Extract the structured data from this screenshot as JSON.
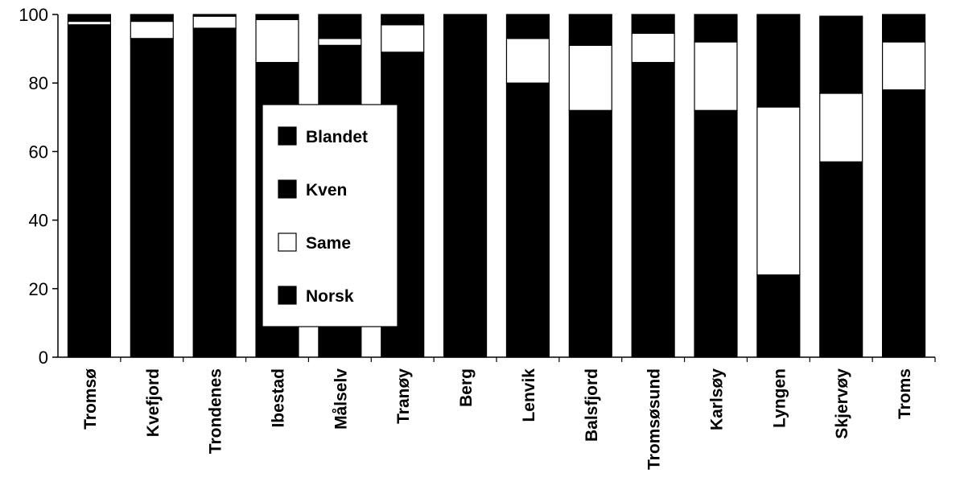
{
  "chart_data": {
    "type": "bar",
    "stacked": true,
    "categories": [
      "Tromsø",
      "Kvefjord",
      "Trondenes",
      "Ibestad",
      "Målselv",
      "Tranøy",
      "Berg",
      "Lenvik",
      "Balsfjord",
      "Tromsøsund",
      "Karlsøy",
      "Lyngen",
      "Skjervøy",
      "Troms"
    ],
    "series": [
      {
        "name": "Norsk",
        "color": "#000000",
        "values": [
          97,
          93,
          96,
          86,
          91,
          89,
          100,
          80,
          72,
          86,
          72,
          24,
          57,
          78
        ]
      },
      {
        "name": "Same",
        "color": "#ffffff",
        "values": [
          1,
          5,
          3.5,
          12.5,
          2,
          8,
          0,
          13,
          19,
          8.5,
          20,
          49,
          20,
          14
        ]
      },
      {
        "name": "Kven",
        "color": "#000000",
        "values": [
          2,
          2,
          0.5,
          1,
          6,
          3,
          0,
          7,
          9,
          5.5,
          8,
          27,
          22,
          8
        ]
      },
      {
        "name": "Blandet",
        "color": "#000000",
        "values": [
          0,
          0,
          0,
          0.5,
          1,
          0,
          0,
          0,
          0,
          0,
          0,
          0,
          0.5,
          0
        ]
      }
    ],
    "legend": {
      "position": "inside-left",
      "order": [
        "Blandet",
        "Kven",
        "Same",
        "Norsk"
      ]
    },
    "yticks": [
      0,
      20,
      40,
      60,
      80,
      100
    ],
    "ylim": [
      0,
      100
    ],
    "title": "",
    "xlabel": "",
    "ylabel": "",
    "grid": false
  }
}
